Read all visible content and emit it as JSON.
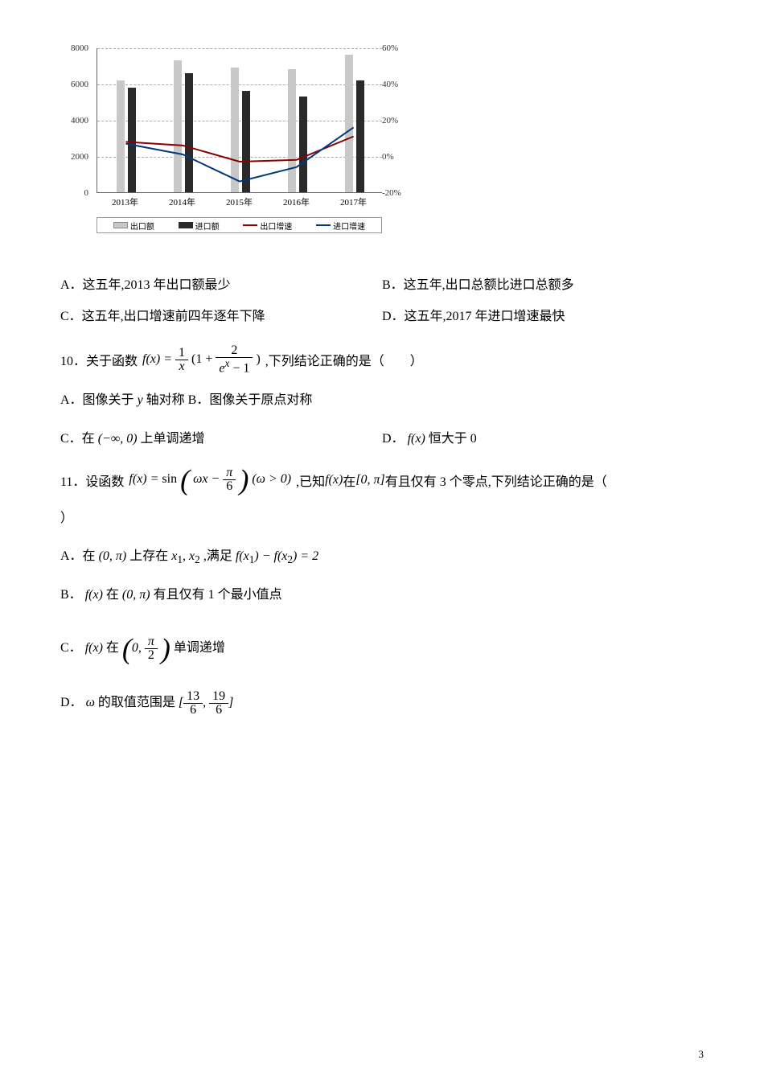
{
  "chart": {
    "type": "bar+line",
    "left_axis": {
      "ticks": [
        0,
        2000,
        4000,
        6000,
        8000
      ],
      "max": 8000
    },
    "right_axis": {
      "ticks": [
        "-20%",
        "0%",
        "20%",
        "40%",
        "60%"
      ],
      "min": -20,
      "max": 60
    },
    "x_labels": [
      "2013年",
      "2014年",
      "2015年",
      "2016年",
      "2017年"
    ],
    "series": {
      "export_amount": {
        "label": "出口额",
        "color": "#c8c8c8",
        "values": [
          6200,
          7300,
          6900,
          6800,
          7600
        ]
      },
      "import_amount": {
        "label": "进口额",
        "color": "#2a2a2a",
        "values": [
          5800,
          6600,
          5600,
          5300,
          6200
        ]
      },
      "export_growth": {
        "label": "出口增速",
        "color": "#8a0000",
        "values": [
          8,
          6,
          -3,
          -2,
          11
        ]
      },
      "import_growth": {
        "label": "进口增速",
        "color": "#003a7a",
        "values": [
          7,
          1,
          -14,
          -6,
          16
        ]
      }
    },
    "legend_labels": {
      "export_amt": "出口额",
      "import_amt": "进口额",
      "export_g": "出口增速",
      "import_g": "进口增速"
    },
    "background": "#ffffff",
    "grid_color": "#aaaaaa"
  },
  "q9": {
    "A": "A．这五年,2013 年出口额最少",
    "B": "B．这五年,出口总额比进口总额多",
    "C": "C．这五年,出口增速前四年逐年下降",
    "D": "D．这五年,2017 年进口增速最快"
  },
  "q10": {
    "prefix": "10．关于函数",
    "suffix": ",下列结论正确的是（　　）",
    "A": "A．图像关于",
    "A_mid": "轴对称 B．图像关于原点对称",
    "C_pre": "C．在",
    "C_post": "上单调递增",
    "D_pre": "D．",
    "D_post": "恒大于 0"
  },
  "q11": {
    "prefix": "11．设函数",
    "mid": ",已知",
    "mid2": "在",
    "suffix": "有且仅有 3 个零点,下列结论正确的是（",
    "close": "）",
    "A_pre": "A．在",
    "A_mid": "上存在",
    "A_mid2": ",满足",
    "B_pre": "B．",
    "B_mid": "在",
    "B_post": "有且仅有 1 个最小值点",
    "C_pre": "C．",
    "C_mid": "在",
    "C_post": "单调递增",
    "D_pre": "D．",
    "D_mid": "的取值范围是"
  },
  "page_number": "3"
}
